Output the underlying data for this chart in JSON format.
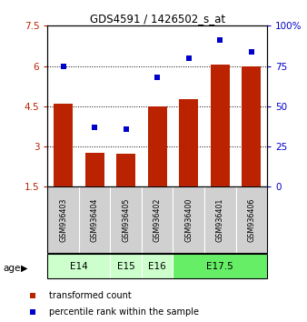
{
  "title": "GDS4591 / 1426502_s_at",
  "samples": [
    "GSM936403",
    "GSM936404",
    "GSM936405",
    "GSM936402",
    "GSM936400",
    "GSM936401",
    "GSM936406"
  ],
  "bar_values": [
    4.6,
    2.75,
    2.72,
    4.48,
    4.75,
    6.05,
    5.97
  ],
  "dot_values": [
    75,
    37,
    36,
    68,
    80,
    91,
    84
  ],
  "bar_color": "#bb2200",
  "dot_color": "#0000cc",
  "ylim_left": [
    1.5,
    7.5
  ],
  "ylim_right": [
    0,
    100
  ],
  "yticks_left": [
    1.5,
    3.0,
    4.5,
    6.0,
    7.5
  ],
  "yticks_right": [
    0,
    25,
    50,
    75,
    100
  ],
  "ytick_labels_left": [
    "1.5",
    "3",
    "4.5",
    "6",
    "7.5"
  ],
  "ytick_labels_right": [
    "0",
    "25",
    "50",
    "75",
    "100%"
  ],
  "age_groups": [
    {
      "label": "E14",
      "indices": [
        0,
        1
      ],
      "color": "#ccffcc"
    },
    {
      "label": "E15",
      "indices": [
        2
      ],
      "color": "#ccffcc"
    },
    {
      "label": "E16",
      "indices": [
        3
      ],
      "color": "#ccffcc"
    },
    {
      "label": "E17.5",
      "indices": [
        4,
        5,
        6
      ],
      "color": "#66ee66"
    }
  ],
  "legend_bar_label": "transformed count",
  "legend_dot_label": "percentile rank within the sample",
  "bar_width": 0.6,
  "sample_bg_color": "#d0d0d0",
  "grid_color": "black"
}
